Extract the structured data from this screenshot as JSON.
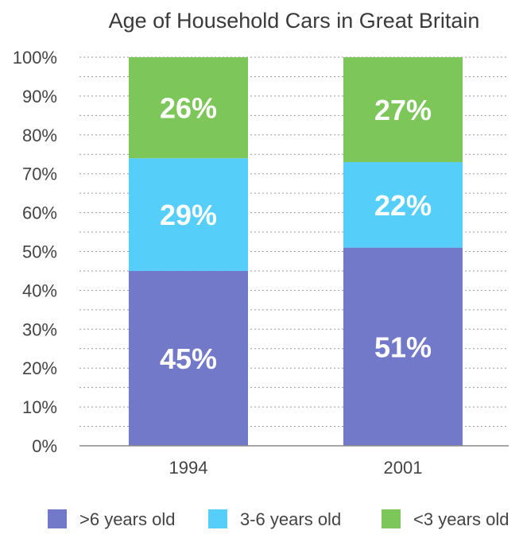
{
  "chart_data": {
    "type": "bar",
    "stacked": true,
    "title": "Age of Household Cars in Great Britain",
    "xlabel": "",
    "ylabel": "",
    "categories": [
      "1994",
      "2001"
    ],
    "series": [
      {
        "name": ">6 years old",
        "values": [
          45,
          51
        ],
        "color": "#7179c8"
      },
      {
        "name": "3-6 years old",
        "values": [
          29,
          22
        ],
        "color": "#55cefa"
      },
      {
        "name": "<3 years old",
        "values": [
          26,
          27
        ],
        "color": "#7cc65a"
      }
    ],
    "data_labels": [
      [
        "45%",
        "51%"
      ],
      [
        "29%",
        "22%"
      ],
      [
        "26%",
        "27%"
      ]
    ],
    "ylim": [
      0,
      100
    ],
    "yticks": [
      0,
      10,
      20,
      30,
      40,
      50,
      60,
      70,
      80,
      90,
      100
    ],
    "ytick_labels": [
      "0%",
      "10%",
      "20%",
      "30%",
      "40%",
      "50%",
      "60%",
      "70%",
      "80%",
      "90%",
      "100%"
    ],
    "grid": true,
    "grid_style": "dotted",
    "legend_position": "bottom"
  }
}
